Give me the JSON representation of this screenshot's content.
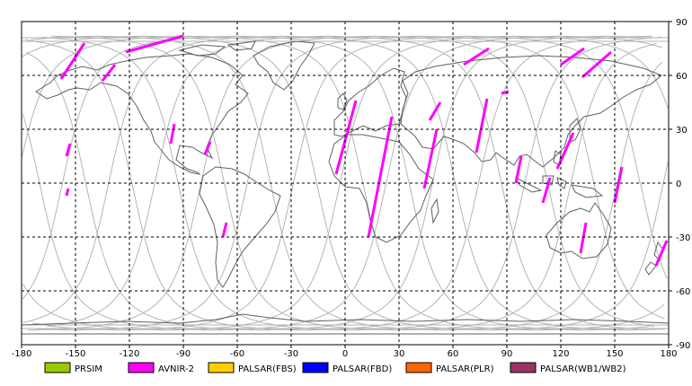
{
  "map": {
    "projection": "equirectangular",
    "lon_range": [
      -180,
      180
    ],
    "lat_range": [
      -90,
      90
    ],
    "x_ticks": [
      "-180",
      "-150",
      "-120",
      "-90",
      "-60",
      "-30",
      "0",
      "30",
      "60",
      "90",
      "120",
      "150",
      "180"
    ],
    "y_ticks": [
      "90",
      "60",
      "30",
      "0",
      "-30",
      "-60",
      "-90"
    ],
    "grid": "dashed",
    "colors": {
      "land_outline": "#606060",
      "orbit_track": "#b4b4b4",
      "grid": "#000000",
      "swath": "#ff00ff"
    }
  },
  "legend": [
    {
      "label": "PRSIM",
      "color": "#99cc00"
    },
    {
      "label": "AVNIR-2",
      "color": "#ff00ff"
    },
    {
      "label": "PALSAR(FBS)",
      "color": "#ffcc00"
    },
    {
      "label": "PALSAR(FBD)",
      "color": "#0000ff"
    },
    {
      "label": "PALSAR(PLR)",
      "color": "#ff6600"
    },
    {
      "label": "PALSAR(WB1/WB2)",
      "color": "#993366"
    }
  ],
  "swaths": [
    {
      "sensor": "AVNIR-2",
      "start": [
        -145,
        78
      ],
      "end": [
        -158,
        58
      ]
    },
    {
      "sensor": "AVNIR-2",
      "start": [
        -128,
        66
      ],
      "end": [
        -135,
        57
      ]
    },
    {
      "sensor": "AVNIR-2",
      "start": [
        -90,
        82
      ],
      "end": [
        -122,
        73
      ]
    },
    {
      "sensor": "AVNIR-2",
      "start": [
        -153,
        22
      ],
      "end": [
        -155,
        15
      ]
    },
    {
      "sensor": "AVNIR-2",
      "start": [
        -154,
        -3
      ],
      "end": [
        -155,
        -7
      ]
    },
    {
      "sensor": "AVNIR-2",
      "start": [
        -95,
        33
      ],
      "end": [
        -97,
        22
      ]
    },
    {
      "sensor": "AVNIR-2",
      "start": [
        -75,
        23
      ],
      "end": [
        -78,
        16
      ]
    },
    {
      "sensor": "AVNIR-2",
      "start": [
        -66,
        -22
      ],
      "end": [
        -68,
        -30
      ]
    },
    {
      "sensor": "AVNIR-2",
      "start": [
        6,
        46
      ],
      "end": [
        -5,
        5
      ]
    },
    {
      "sensor": "AVNIR-2",
      "start": [
        26,
        37
      ],
      "end": [
        13,
        -30
      ]
    },
    {
      "sensor": "AVNIR-2",
      "start": [
        53,
        45
      ],
      "end": [
        47,
        35
      ]
    },
    {
      "sensor": "AVNIR-2",
      "start": [
        51,
        30
      ],
      "end": [
        44,
        -3
      ]
    },
    {
      "sensor": "AVNIR-2",
      "start": [
        80,
        75
      ],
      "end": [
        66,
        66
      ]
    },
    {
      "sensor": "AVNIR-2",
      "start": [
        79,
        47
      ],
      "end": [
        73,
        17
      ]
    },
    {
      "sensor": "AVNIR-2",
      "start": [
        91,
        51
      ],
      "end": [
        87,
        50
      ]
    },
    {
      "sensor": "AVNIR-2",
      "start": [
        98,
        15
      ],
      "end": [
        95,
        0
      ]
    },
    {
      "sensor": "AVNIR-2",
      "start": [
        114,
        3
      ],
      "end": [
        110,
        -11
      ]
    },
    {
      "sensor": "AVNIR-2",
      "start": [
        133,
        75
      ],
      "end": [
        120,
        66
      ]
    },
    {
      "sensor": "AVNIR-2",
      "start": [
        148,
        73
      ],
      "end": [
        132,
        59
      ]
    },
    {
      "sensor": "AVNIR-2",
      "start": [
        127,
        28
      ],
      "end": [
        118,
        8
      ]
    },
    {
      "sensor": "AVNIR-2",
      "start": [
        134,
        -22
      ],
      "end": [
        131,
        -39
      ]
    },
    {
      "sensor": "AVNIR-2",
      "start": [
        154,
        9
      ],
      "end": [
        150,
        -11
      ]
    },
    {
      "sensor": "AVNIR-2",
      "start": [
        179,
        -32
      ],
      "end": [
        173,
        -46
      ]
    }
  ]
}
